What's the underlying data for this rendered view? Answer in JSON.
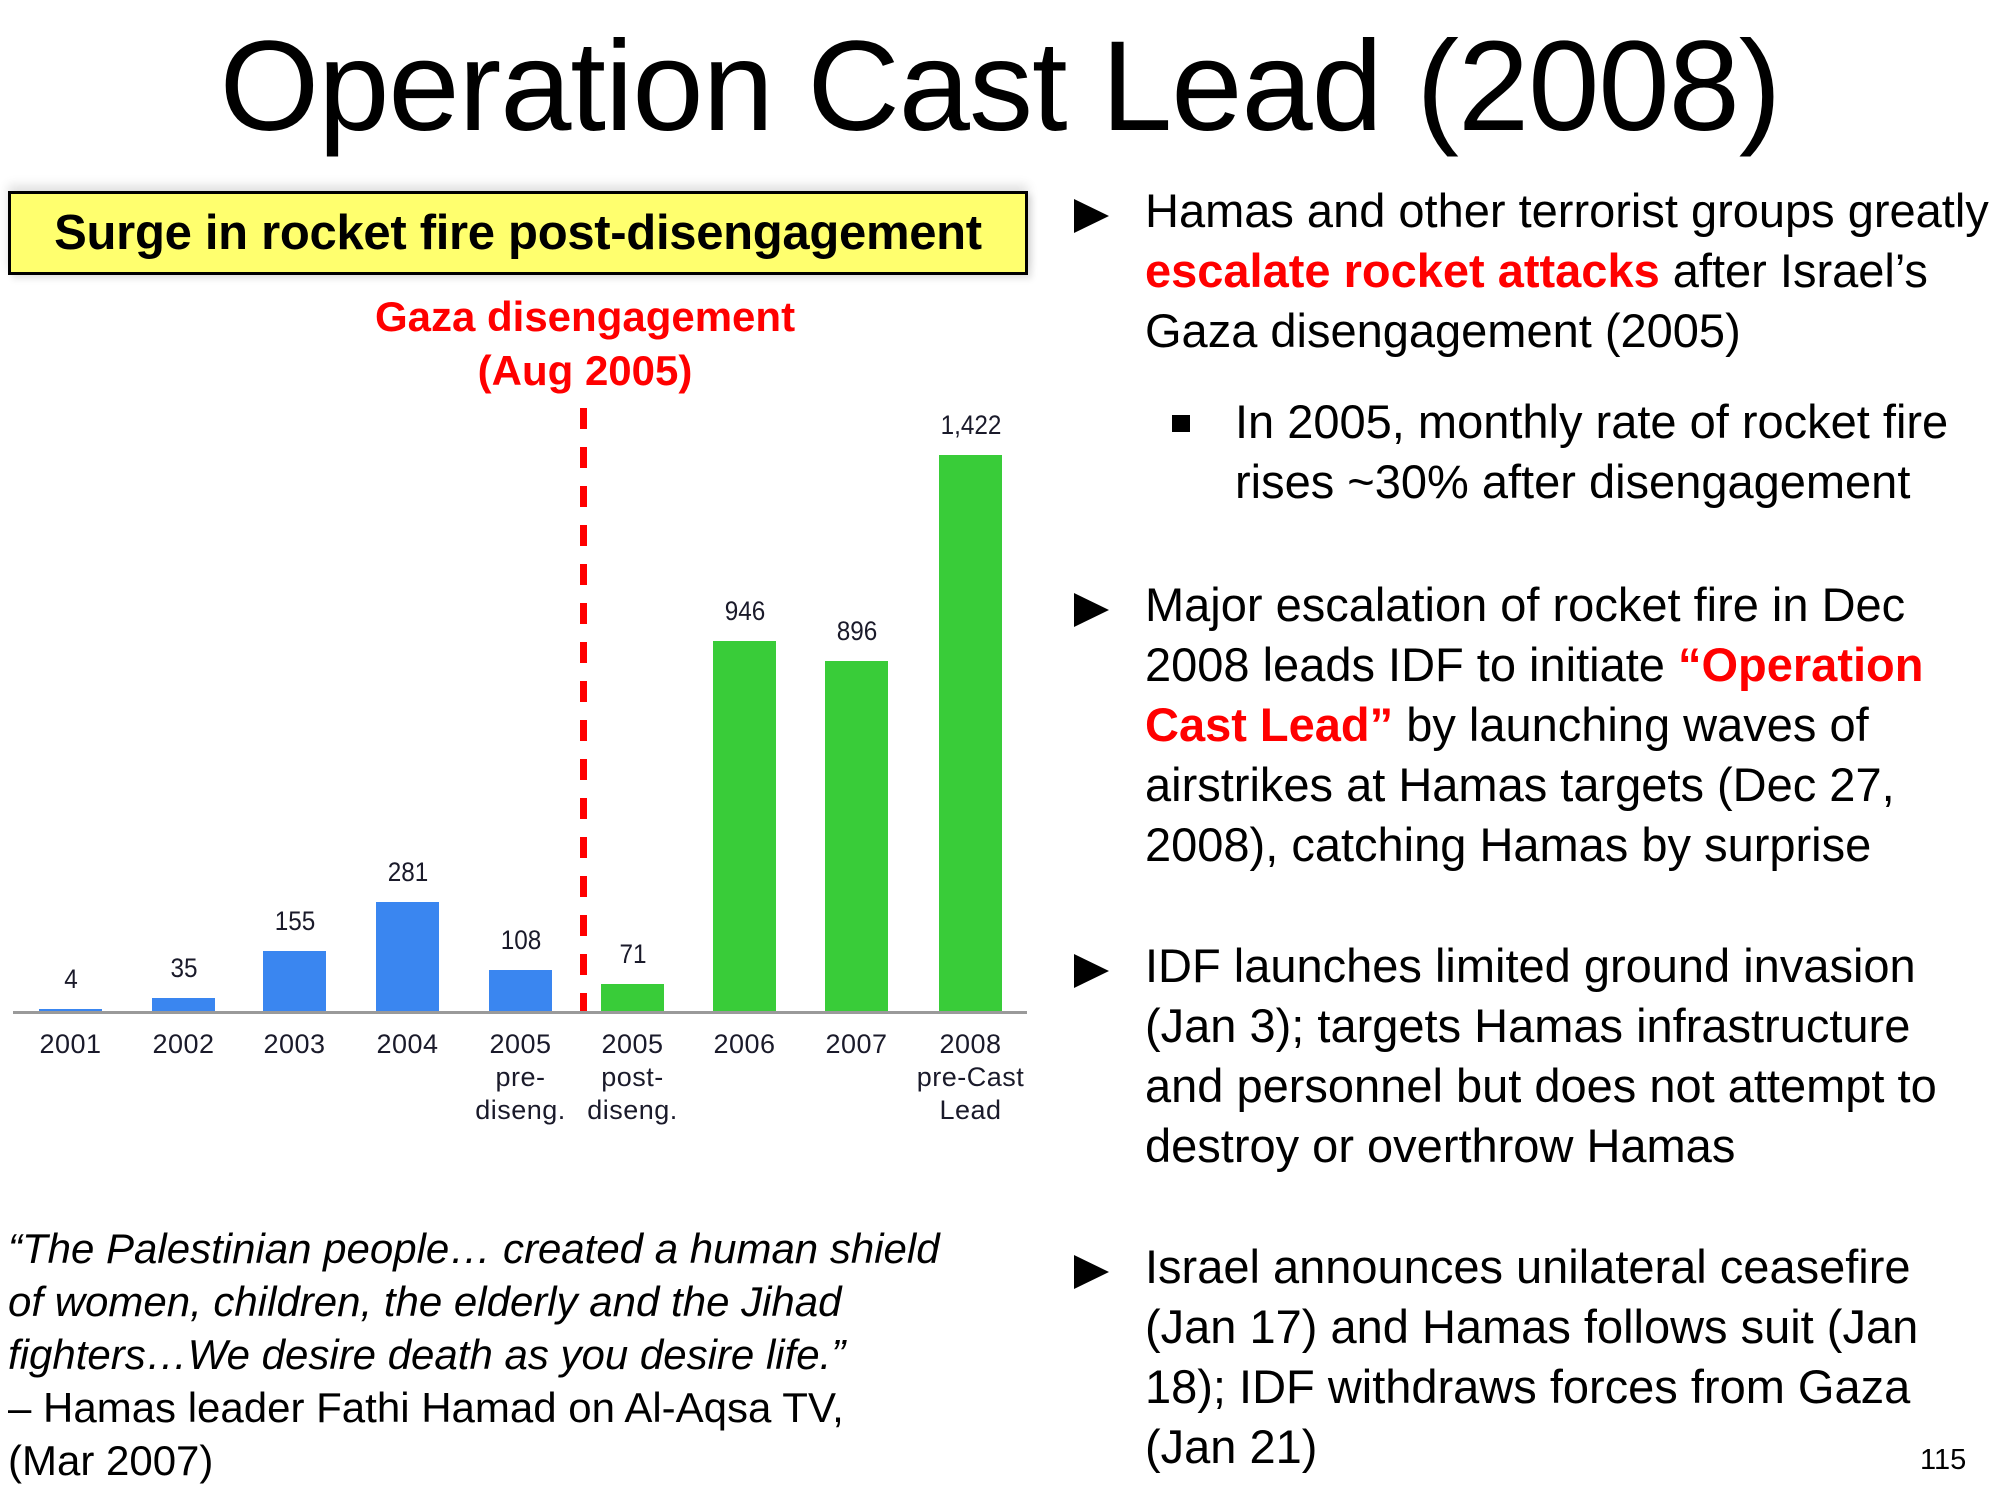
{
  "slide": {
    "title": "Operation Cast Lead (2008)",
    "page_number": "115"
  },
  "headline": "Surge in rocket fire post-disengagement",
  "annotation": {
    "line1": "Gaza disengagement",
    "line2": "(Aug 2005)",
    "color": "#ff0000"
  },
  "chart_data": {
    "type": "bar",
    "title": "Surge in rocket fire post-disengagement",
    "xlabel": "",
    "ylabel": "",
    "categories": [
      "2001",
      "2002",
      "2003",
      "2004",
      "2005 pre-diseng.",
      "2005 post-diseng.",
      "2006",
      "2007",
      "2008 pre-Cast Lead"
    ],
    "category_lines": [
      [
        "2001"
      ],
      [
        "2002"
      ],
      [
        "2003"
      ],
      [
        "2004"
      ],
      [
        "2005",
        "pre-",
        "diseng."
      ],
      [
        "2005",
        "post-",
        "diseng."
      ],
      [
        "2006"
      ],
      [
        "2007"
      ],
      [
        "2008",
        "pre-Cast",
        "Lead"
      ]
    ],
    "values": [
      4,
      35,
      155,
      281,
      108,
      71,
      946,
      896,
      1422
    ],
    "value_labels": [
      "4",
      "35",
      "155",
      "281",
      "108",
      "71",
      "946",
      "896",
      "1,422"
    ],
    "series_colors": {
      "pre_disengagement": "#3a86f0",
      "post_disengagement": "#39cc39"
    },
    "bar_colors": [
      "#3a86f0",
      "#3a86f0",
      "#3a86f0",
      "#3a86f0",
      "#3a86f0",
      "#39cc39",
      "#39cc39",
      "#39cc39",
      "#39cc39"
    ],
    "annotations": [
      {
        "type": "vertical-dashed-line",
        "between": [
          "2005 pre-diseng.",
          "2005 post-diseng."
        ],
        "label": "Gaza disengagement (Aug 2005)",
        "color": "#ff0000"
      }
    ],
    "ylim": [
      0,
      1422
    ],
    "grid": false,
    "legend": "none"
  },
  "quote": {
    "text_line1": "“The Palestinian people… created a human shield",
    "text_line2": "of women, children, the elderly and the Jihad",
    "text_line3": "fighters…We desire death as you desire life.”",
    "attribution_line1": "– Hamas leader Fathi Hamad on Al-Aqsa TV,",
    "attribution_line2": "(Mar 2007)"
  },
  "bullets": [
    {
      "parts": [
        {
          "text": "Hamas and other terrorist groups greatly ",
          "style": "normal"
        },
        {
          "text": "escalate rocket attacks",
          "style": "red-bold"
        },
        {
          "text": " after Israel’s Gaza disengagement (2005)",
          "style": "normal"
        }
      ],
      "sub_bullets": [
        {
          "text": "In 2005, monthly rate of rocket fire rises ~30% after disengagement"
        }
      ]
    },
    {
      "parts": [
        {
          "text": "Major escalation of rocket fire in Dec 2008 leads IDF to initiate ",
          "style": "normal"
        },
        {
          "text": "“Operation Cast Lead”",
          "style": "red-bold"
        },
        {
          "text": " by launching waves of airstrikes at Hamas targets (Dec 27, 2008), catching Hamas by surprise",
          "style": "normal"
        }
      ]
    },
    {
      "parts": [
        {
          "text": "IDF launches limited ground invasion (Jan 3); targets Hamas infrastructure and personnel but does not attempt to destroy or overthrow Hamas",
          "style": "normal"
        }
      ]
    },
    {
      "parts": [
        {
          "text": "Israel announces unilateral ceasefire (Jan 17) and Hamas follows suit (Jan 18); IDF withdraws forces from Gaza (Jan 21)",
          "style": "normal"
        }
      ]
    }
  ]
}
